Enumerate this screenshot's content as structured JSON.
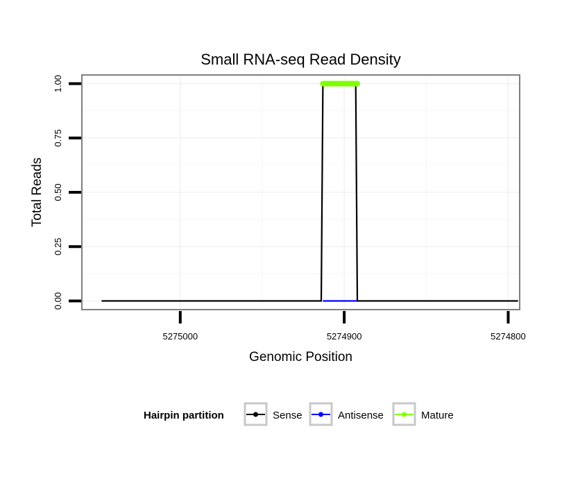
{
  "chart_data": {
    "type": "line",
    "title": "Small RNA-seq Read Density",
    "xlabel": "Genomic Position",
    "ylabel": "Total Reads",
    "x_reversed": true,
    "xlim": [
      5275060,
      5274793
    ],
    "ylim": [
      -0.04,
      1.04
    ],
    "x_ticks": [
      5275000,
      5274900,
      5274800
    ],
    "x_tick_labels": [
      "5275000",
      "5274900",
      "5274800"
    ],
    "y_ticks": [
      0,
      0.25,
      0.5,
      0.75,
      1.0
    ],
    "y_tick_labels": [
      "0.00",
      "0.25",
      "0.50",
      "0.75",
      "1.00"
    ],
    "grid": true,
    "legend": {
      "title": "Hairpin partition",
      "position": "bottom",
      "entries": [
        "Sense",
        "Antisense",
        "Mature"
      ]
    },
    "series": [
      {
        "name": "Sense",
        "color": "#000000",
        "x": [
          5275048,
          5274914,
          5274913,
          5274893,
          5274892,
          5274794
        ],
        "y": [
          0,
          0,
          1,
          1,
          0,
          0
        ]
      },
      {
        "name": "Antisense",
        "color": "#0000ff",
        "x": [
          5274913,
          5274892
        ],
        "y": [
          0,
          0
        ]
      },
      {
        "name": "Mature",
        "color": "#7fff00",
        "x": [
          5274913,
          5274892
        ],
        "y": [
          1,
          1
        ]
      }
    ]
  }
}
